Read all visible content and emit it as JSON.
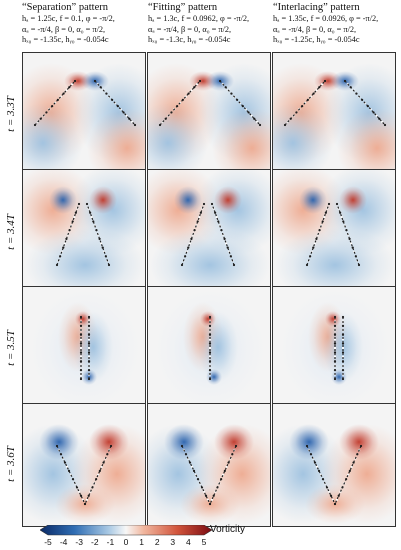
{
  "columns": [
    {
      "title": "“Separation” pattern",
      "p1": "hₐ = 1.25c, f = 0.1, φ = -π/2,",
      "p2": "αₐ = -π/4, β = 0, α₀ = π/2,",
      "p3": "hₓ₀ = -1.35c, hᵧ₀ = -0.054c"
    },
    {
      "title": "“Fitting” pattern",
      "p1": "hₐ = 1.3c, f = 0.0962, φ = -π/2,",
      "p2": "αₐ = -π/4, β = 0, α₀ = π/2,",
      "p3": "hₓ₀ = -1.3c, hᵧ₀ = -0.054c"
    },
    {
      "title": "“Interlacing” pattern",
      "p1": "hₐ = 1.35c, f = 0.0926, φ = -π/2,",
      "p2": "αₐ = -π/4, β = 0, α₀ = π/2,",
      "p3": "hₓ₀ = -1.25c, hᵧ₀ = -0.054c"
    }
  ],
  "rows": [
    {
      "label": "t = 3.3T"
    },
    {
      "label": "t = 3.4T"
    },
    {
      "label": "t = 3.5T"
    },
    {
      "label": "t = 3.6T"
    }
  ],
  "colorbar": {
    "label": "Vorticity",
    "ticks": [
      "-5",
      "-4",
      "-3",
      "-2",
      "-1",
      "0",
      "1",
      "2",
      "3",
      "4",
      "5"
    ],
    "neg_color": "#1f4e9c",
    "pos_color": "#a8161c"
  }
}
